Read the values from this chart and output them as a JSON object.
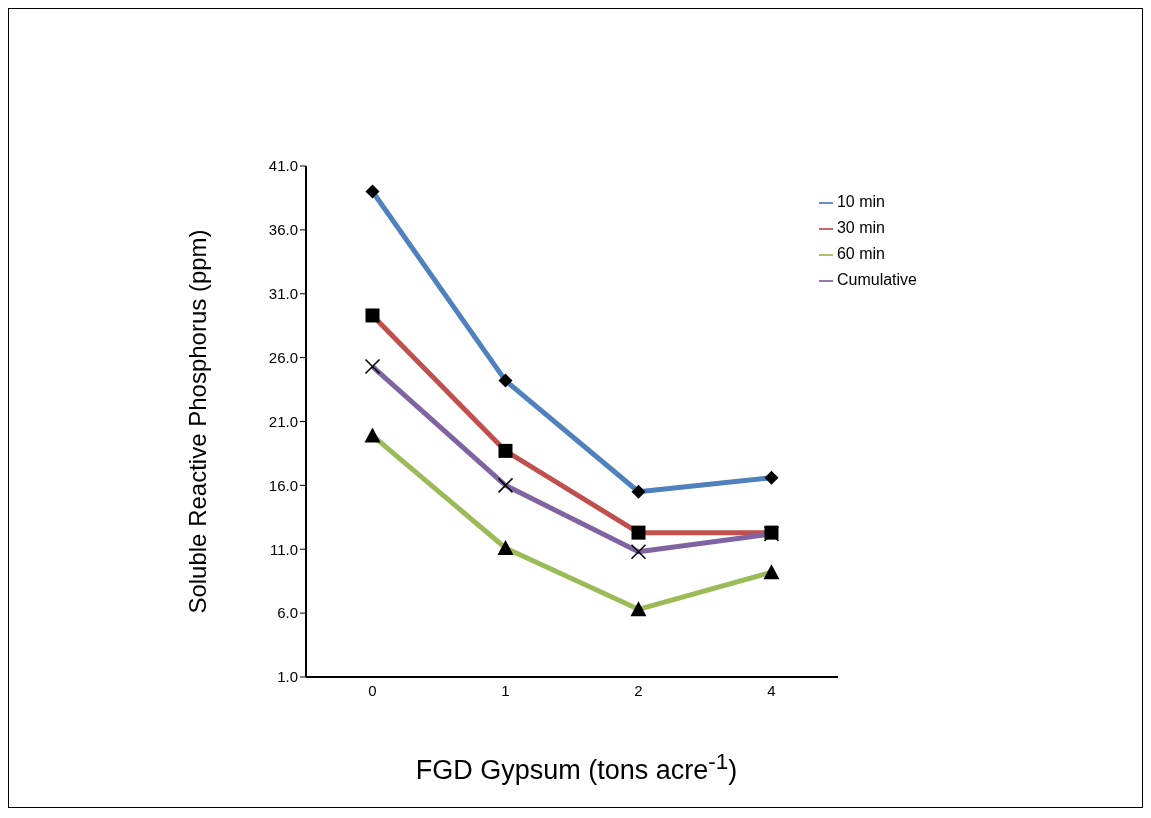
{
  "chart_data": {
    "type": "line",
    "xlabel": "FGD Gypsum (tons acre$^{-1}$)",
    "ylabel": "Soluble Reactive Phosphorus  (ppm)",
    "categories": [
      "0",
      "1",
      "2",
      "4"
    ],
    "series": [
      {
        "name": "10 min",
        "color": "#4f81bd",
        "marker": "diamond",
        "values": [
          39.0,
          24.2,
          15.5,
          16.6
        ]
      },
      {
        "name": "30 min",
        "color": "#c0504d",
        "marker": "square",
        "values": [
          29.3,
          18.7,
          12.3,
          12.3
        ]
      },
      {
        "name": "60 min",
        "color": "#9bbb59",
        "marker": "triangle",
        "values": [
          19.9,
          11.1,
          6.3,
          9.2
        ]
      },
      {
        "name": "Cumulative",
        "color": "#8064a2",
        "marker": "cross",
        "values": [
          25.3,
          16.0,
          10.8,
          12.2
        ]
      }
    ],
    "ylim": [
      1,
      41
    ],
    "yticks": [
      {
        "value": 1,
        "label": "1.0"
      },
      {
        "value": 6,
        "label": "6.0"
      },
      {
        "value": 11,
        "label": "11.0"
      },
      {
        "value": 16,
        "label": "16.0"
      },
      {
        "value": 21,
        "label": "21.0"
      },
      {
        "value": 26,
        "label": "26.0"
      },
      {
        "value": 31,
        "label": "31.0"
      },
      {
        "value": 36,
        "label": "36.0"
      },
      {
        "value": 41,
        "label": "41.0"
      }
    ],
    "grid": false,
    "legend": "top right",
    "line_style": "solid"
  }
}
